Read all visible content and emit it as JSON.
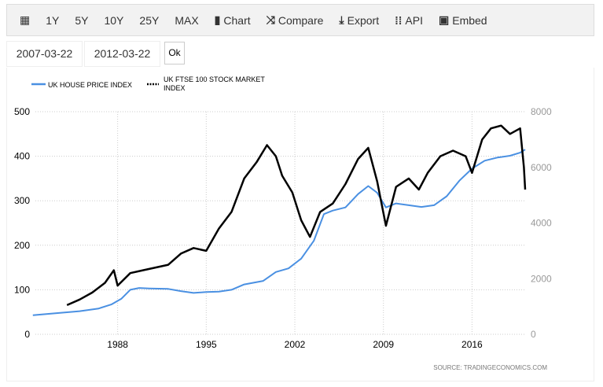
{
  "toolbar": {
    "items": [
      "1Y",
      "5Y",
      "10Y",
      "25Y",
      "MAX"
    ],
    "chart": "Chart",
    "compare": "Compare",
    "export": "Export",
    "api": "API",
    "embed": "Embed"
  },
  "dates": {
    "start": "2007-03-22",
    "end": "2012-03-22",
    "ok": "Ok"
  },
  "source": "SOURCE:  TRADINGECONOMICS.COM",
  "chart_data": {
    "type": "line",
    "legend": {
      "placement": "top-left",
      "entries": [
        "UK HOUSE PRICE INDEX",
        "UK FTSE 100 STOCK MARKET INDEX"
      ]
    },
    "x_ticks": [
      "1988",
      "1995",
      "2002",
      "2009",
      "2016"
    ],
    "xlim": [
      1981.5,
      2020.2
    ],
    "y_left": {
      "ticks": [
        "0",
        "100",
        "200",
        "300",
        "400",
        "500"
      ],
      "ylim": [
        0,
        500
      ]
    },
    "y_right": {
      "ticks": [
        "0",
        "2000",
        "4000",
        "6000",
        "8000"
      ],
      "ylim": [
        0,
        8000
      ]
    },
    "series": [
      {
        "name": "UK HOUSE PRICE INDEX",
        "axis": "left",
        "color": "#4a90e2",
        "x": [
          1981.3,
          1983,
          1985,
          1986.5,
          1987.5,
          1988.3,
          1989,
          1989.7,
          1990.5,
          1992,
          1993,
          1994,
          1995,
          1996,
          1997,
          1998,
          1999.5,
          2000.5,
          2001.5,
          2002.5,
          2003.5,
          2004.3,
          2005,
          2006,
          2007,
          2007.8,
          2008.5,
          2009.2,
          2010,
          2011,
          2012,
          2013,
          2014,
          2015,
          2016,
          2017,
          2018,
          2019,
          2019.8,
          2020.2
        ],
        "y": [
          43,
          47,
          52,
          58,
          67,
          80,
          100,
          104,
          103,
          102,
          97,
          93,
          95,
          96,
          100,
          112,
          120,
          140,
          148,
          170,
          210,
          270,
          278,
          285,
          315,
          333,
          318,
          285,
          294,
          290,
          286,
          290,
          310,
          345,
          372,
          390,
          397,
          401,
          408,
          415
        ]
      },
      {
        "name": "UK FTSE 100 STOCK MARKET INDEX",
        "axis": "right",
        "color": "#000000",
        "x": [
          1984,
          1985,
          1986,
          1987,
          1987.7,
          1988,
          1989,
          1990,
          1991,
          1992,
          1993,
          1994,
          1995,
          1996,
          1997,
          1998,
          1999,
          1999.8,
          2000.5,
          2001,
          2001.8,
          2002.5,
          2003.2,
          2004,
          2005,
          2006,
          2007,
          2007.8,
          2008.5,
          2009.2,
          2010,
          2011,
          2011.8,
          2012.5,
          2013.5,
          2014.5,
          2015.5,
          2016,
          2016.8,
          2017.5,
          2018.3,
          2019,
          2019.8,
          2020.1,
          2020.2
        ],
        "y": [
          1050,
          1250,
          1500,
          1850,
          2300,
          1750,
          2200,
          2300,
          2400,
          2500,
          2900,
          3100,
          3000,
          3800,
          4400,
          5600,
          6200,
          6800,
          6400,
          5700,
          5100,
          4100,
          3500,
          4400,
          4700,
          5400,
          6300,
          6700,
          5500,
          3900,
          5300,
          5600,
          5200,
          5800,
          6400,
          6600,
          6400,
          5800,
          7000,
          7400,
          7500,
          7200,
          7400,
          6000,
          5200
        ]
      }
    ]
  }
}
